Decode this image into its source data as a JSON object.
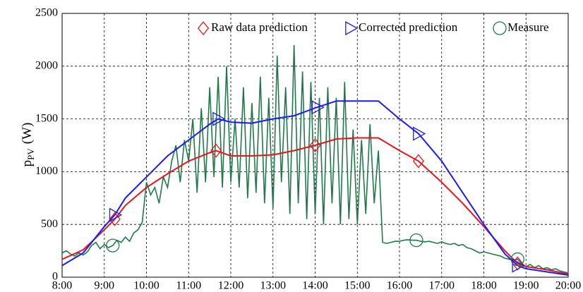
{
  "chart_data": {
    "type": "line",
    "ylabel": {
      "main": "p",
      "sub": "PV",
      "unit": "(W)"
    },
    "xlim": [
      8,
      20
    ],
    "xticks": [
      {
        "value": 8,
        "label": "8:00"
      },
      {
        "value": 9,
        "label": "9:00"
      },
      {
        "value": 10,
        "label": "10:00"
      },
      {
        "value": 11,
        "label": "11:00"
      },
      {
        "value": 12,
        "label": "12:00"
      },
      {
        "value": 13,
        "label": "13:00"
      },
      {
        "value": 14,
        "label": "14:00"
      },
      {
        "value": 15,
        "label": "15:00"
      },
      {
        "value": 16,
        "label": "16:00"
      },
      {
        "value": 17,
        "label": "17:00"
      },
      {
        "value": 18,
        "label": "18:00"
      },
      {
        "value": 19,
        "label": "19:00"
      },
      {
        "value": 20,
        "label": "20:00"
      }
    ],
    "ylim": [
      0,
      2500
    ],
    "yticks": [
      0,
      500,
      1000,
      1500,
      2000,
      2500
    ],
    "grid": true,
    "legend": "top-right",
    "series": [
      {
        "name": "Raw data prediction",
        "color": "#e8141a",
        "marker": "diamond",
        "markers": [
          3,
          9,
          14,
          19,
          24
        ],
        "x": [
          8,
          8.5,
          9,
          9.25,
          9.5,
          10,
          10.5,
          11,
          11.5,
          11.65,
          12,
          12.5,
          13,
          13.5,
          14,
          14.5,
          15,
          15.5,
          16,
          16.45,
          17,
          17.5,
          18,
          18.5,
          18.8,
          19,
          19.5,
          20
        ],
        "values": [
          170,
          260,
          450,
          550,
          680,
          850,
          980,
          1100,
          1180,
          1200,
          1150,
          1150,
          1160,
          1200,
          1250,
          1310,
          1320,
          1320,
          1200,
          1100,
          900,
          700,
          480,
          250,
          130,
          100,
          70,
          30
        ]
      },
      {
        "name": "Corrected prediction",
        "color": "#1a1aff",
        "marker": "triangle",
        "markers": [
          3,
          9,
          14,
          19,
          24
        ],
        "x": [
          8,
          8.5,
          9,
          9.25,
          9.5,
          10,
          10.5,
          11,
          11.5,
          11.7,
          12,
          12.5,
          13,
          13.5,
          14.05,
          14.5,
          15,
          15.5,
          16,
          16.45,
          17,
          17.5,
          18,
          18.5,
          18.8,
          19,
          19.5,
          20
        ],
        "values": [
          110,
          230,
          480,
          590,
          750,
          950,
          1150,
          1300,
          1450,
          1500,
          1470,
          1460,
          1500,
          1530,
          1610,
          1670,
          1670,
          1670,
          1500,
          1360,
          1100,
          800,
          500,
          220,
          110,
          80,
          50,
          20
        ]
      },
      {
        "name": "Measure",
        "color": "#1e7a4a",
        "marker": "circle",
        "markers": [
          12,
          84,
          108
        ],
        "x": [
          8.0,
          8.1,
          8.2,
          8.3,
          8.4,
          8.5,
          8.6,
          8.7,
          8.8,
          8.9,
          9.0,
          9.1,
          9.2,
          9.3,
          9.4,
          9.5,
          9.6,
          9.7,
          9.8,
          9.9,
          10.0,
          10.1,
          10.2,
          10.3,
          10.4,
          10.5,
          10.6,
          10.7,
          10.8,
          10.9,
          11.0,
          11.1,
          11.2,
          11.3,
          11.4,
          11.5,
          11.6,
          11.7,
          11.8,
          11.9,
          12.0,
          12.1,
          12.2,
          12.3,
          12.4,
          12.5,
          12.6,
          12.7,
          12.8,
          12.9,
          13.0,
          13.1,
          13.2,
          13.3,
          13.4,
          13.5,
          13.6,
          13.7,
          13.8,
          13.9,
          14.0,
          14.1,
          14.2,
          14.3,
          14.4,
          14.5,
          14.6,
          14.7,
          14.8,
          14.9,
          15.0,
          15.1,
          15.2,
          15.3,
          15.4,
          15.5,
          15.6,
          15.7,
          15.8,
          15.9,
          16.0,
          16.1,
          16.2,
          16.3,
          16.4,
          16.5,
          16.6,
          16.7,
          16.8,
          16.9,
          17.0,
          17.1,
          17.2,
          17.3,
          17.4,
          17.5,
          17.6,
          17.7,
          17.8,
          17.9,
          18.0,
          18.1,
          18.2,
          18.3,
          18.4,
          18.5,
          18.6,
          18.7,
          18.8,
          18.9,
          19.0,
          19.1,
          19.2,
          19.3,
          19.4,
          19.5,
          19.6,
          19.7,
          19.8,
          19.9,
          20.0
        ],
        "values": [
          230,
          250,
          220,
          200,
          230,
          210,
          240,
          300,
          330,
          270,
          310,
          280,
          300,
          350,
          330,
          380,
          340,
          420,
          450,
          520,
          900,
          780,
          850,
          700,
          950,
          850,
          1100,
          1250,
          900,
          1300,
          1100,
          1500,
          800,
          1600,
          900,
          1800,
          950,
          1900,
          850,
          2000,
          900,
          1500,
          850,
          1800,
          750,
          1650,
          800,
          1900,
          700,
          1700,
          650,
          2100,
          900,
          1800,
          600,
          2200,
          700,
          1950,
          550,
          1850,
          600,
          1700,
          500,
          1800,
          700,
          1700,
          500,
          1850,
          550,
          1400,
          500,
          1300,
          600,
          1450,
          700,
          1200,
          330,
          320,
          330,
          340,
          340,
          350,
          355,
          350,
          350,
          340,
          335,
          340,
          330,
          320,
          335,
          320,
          310,
          320,
          300,
          310,
          280,
          270,
          250,
          230,
          240,
          230,
          220,
          210,
          200,
          180,
          170,
          160,
          170,
          130,
          100,
          120,
          90,
          110,
          80,
          90,
          70,
          80,
          60,
          50,
          40
        ]
      }
    ]
  }
}
